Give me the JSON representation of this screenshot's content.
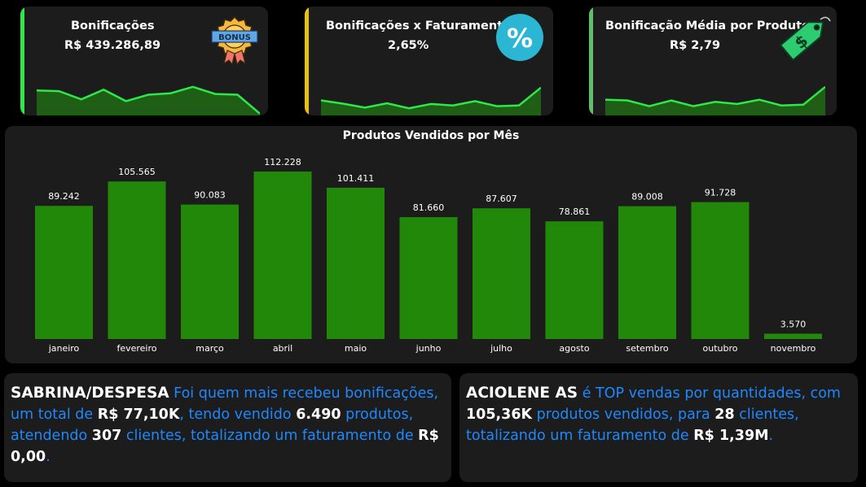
{
  "kpis": {
    "bonificacoes": {
      "title": "Bonificações",
      "value": "R$ 439.286,89",
      "icon": "bonus-badge-icon",
      "accent": "#2ee84a",
      "trend": [
        0.7,
        0.68,
        0.45,
        0.72,
        0.4,
        0.58,
        0.62,
        0.8,
        0.6,
        0.58,
        0.05
      ]
    },
    "bonif_faturamento": {
      "title": "Bonificações x Faturamento",
      "value": "2,65%",
      "icon": "percent-icon",
      "icon_glyph": "%",
      "accent": "#e8c20e",
      "trend": [
        0.42,
        0.33,
        0.22,
        0.34,
        0.2,
        0.32,
        0.28,
        0.4,
        0.26,
        0.28,
        0.78
      ]
    },
    "bonif_media": {
      "title": "Bonificação Média por Produto",
      "value": "R$ 2,79",
      "icon": "price-tag-dollar-icon",
      "icon_glyph": "$",
      "accent": "#5fbf6a",
      "trend": [
        0.44,
        0.42,
        0.26,
        0.42,
        0.26,
        0.38,
        0.32,
        0.44,
        0.28,
        0.3,
        0.8
      ]
    }
  },
  "chart_data": {
    "type": "bar",
    "title": "Produtos Vendidos por Mês",
    "categories": [
      "janeiro",
      "fevereiro",
      "março",
      "abril",
      "maio",
      "junho",
      "julho",
      "agosto",
      "setembro",
      "outubro",
      "novembro"
    ],
    "values": [
      89242,
      105565,
      90083,
      112228,
      101411,
      81660,
      87607,
      78861,
      89008,
      91728,
      3570
    ],
    "labels": [
      "89.242",
      "105.565",
      "90.083",
      "112.228",
      "101.411",
      "81.660",
      "87.607",
      "78.861",
      "89.008",
      "91.728",
      "3.570"
    ],
    "xlabel": "",
    "ylabel": "",
    "ylim": [
      0,
      112228
    ],
    "grid": false,
    "bar_color": "#22880a"
  },
  "insights": {
    "card1": {
      "p1": "SABRINA/DESPESA",
      "p2": " Foi quem mais recebeu bonificações, um total de ",
      "p3": "R$ 77,10K",
      "p4": ", tendo vendido ",
      "p5": "6.490",
      "p6": " produtos, atendendo ",
      "p7": "307",
      "p8": " clientes, totalizando um faturamento de ",
      "p9": "R$ 0,00",
      "p10": "."
    },
    "card2": {
      "p1": "ACIOLENE AS",
      "p2": " é TOP vendas por quantidades, com ",
      "p3": "105,36K",
      "p4": " produtos vendidos, para ",
      "p5": "28",
      "p6": " clientes, totalizando um faturamento de ",
      "p7": "R$ 1,39M",
      "p8": "."
    }
  }
}
